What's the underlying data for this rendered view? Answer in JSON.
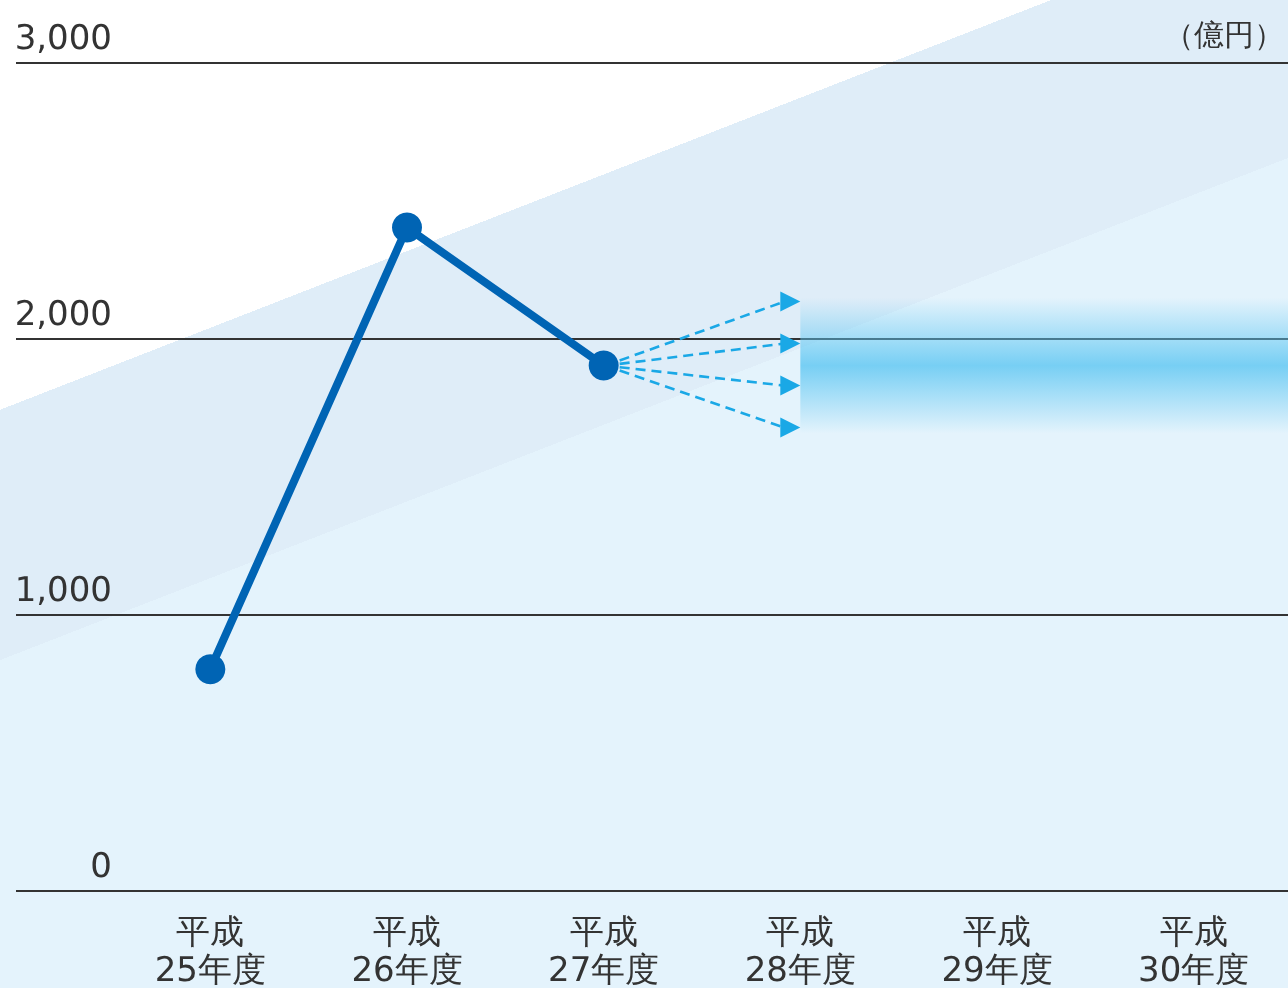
{
  "chart_data": {
    "type": "line",
    "ylabel": "（億円）",
    "categories": [
      "平成\n25年度",
      "平成\n26年度",
      "平成\n27年度",
      "平成\n28年度",
      "平成\n29年度",
      "平成\n30年度"
    ],
    "series": [
      {
        "color": "#0064b4",
        "values": [
          800,
          2400,
          1900,
          null,
          null,
          null
        ]
      }
    ],
    "ylim": [
      0,
      3000
    ],
    "yticks": [
      {
        "value": 0,
        "label": "0"
      },
      {
        "value": 1000,
        "label": "1,000"
      },
      {
        "value": 2000,
        "label": "2,000"
      },
      {
        "value": 3000,
        "label": "3,000"
      }
    ],
    "grid": "y",
    "marker": "circle",
    "line_style": "solid"
  }
}
